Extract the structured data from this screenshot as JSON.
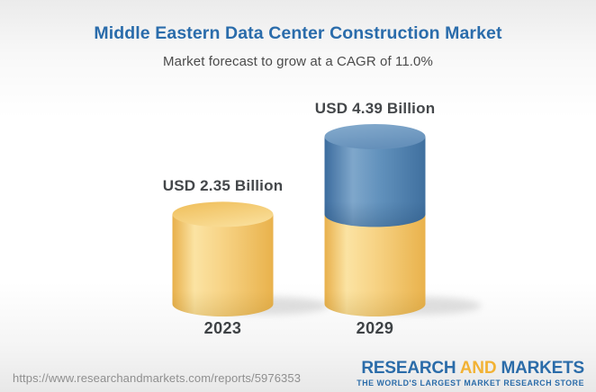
{
  "header": {
    "title": "Middle Eastern Data Center Construction Market",
    "subtitle": "Market forecast to grow at a CAGR of 11.0%"
  },
  "chart_data": {
    "type": "bar",
    "subtype": "3d-stacked-cylinder",
    "title": "Middle Eastern Data Center Construction Market",
    "subtitle": "Market forecast to grow at a CAGR of 11.0%",
    "cagr_percent": 11.0,
    "unit": "USD Billion",
    "categories": [
      "2023",
      "2029"
    ],
    "values": [
      2.35,
      4.39
    ],
    "value_labels": [
      "USD 2.35 Billion",
      "USD 4.39 Billion"
    ],
    "series": [
      {
        "name": "base-2023-value",
        "values": [
          2.35,
          2.35
        ],
        "color": "#F5CE78"
      },
      {
        "name": "forecast-growth",
        "values": [
          0,
          2.04
        ],
        "color": "#5E8CB8"
      }
    ],
    "xlabel": "",
    "ylabel": "",
    "axes_shown": false,
    "grid": false,
    "legend": "none"
  },
  "footer": {
    "url": "https://www.researchandmarkets.com/reports/5976353",
    "logo": {
      "part1": "RESEARCH",
      "part2": "AND",
      "part3": "MARKETS",
      "tagline": "THE WORLD'S LARGEST MARKET RESEARCH STORE"
    }
  },
  "colors": {
    "title_blue": "#2A6CAB",
    "subtitle_gray": "#4B4B4B",
    "label_dark": "#44474A",
    "bar_yellow": "#F5CE78",
    "bar_blue": "#5E8CB8",
    "logo_blue": "#2B6CA9",
    "logo_orange": "#F2B234",
    "url_gray": "#8F8F8F"
  }
}
